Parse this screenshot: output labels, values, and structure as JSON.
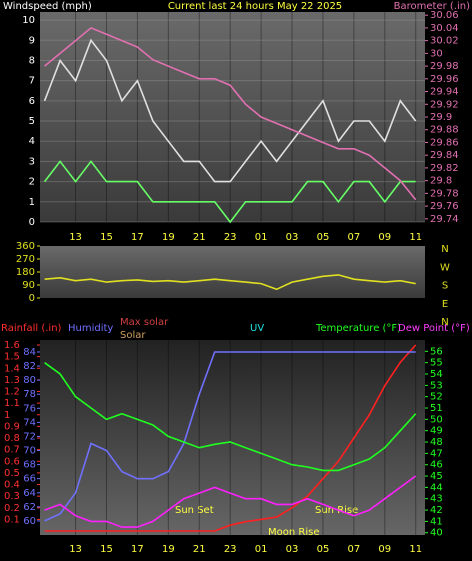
{
  "chart_data": [
    {
      "type": "line",
      "title": "Current last 24 hours May 22 2025",
      "y_label": "Windspeed (mph)",
      "y2_label": "Barometer (.in)",
      "x": [
        11,
        12,
        13,
        14,
        15,
        16,
        17,
        18,
        19,
        20,
        21,
        22,
        23,
        24,
        25,
        26,
        27,
        28,
        29,
        30,
        31,
        32,
        33,
        34,
        35
      ],
      "xlim": [
        10.7,
        35.6
      ],
      "xticks": [
        13,
        15,
        17,
        19,
        21,
        23,
        {
          "value": 25,
          "label": "01"
        },
        {
          "value": 27,
          "label": "03"
        },
        {
          "value": 29,
          "label": "05"
        },
        {
          "value": 31,
          "label": "07"
        },
        {
          "value": 33,
          "label": "09"
        },
        {
          "value": 35,
          "label": "11"
        }
      ],
      "ylim": [
        0,
        10.4
      ],
      "yticks": [
        0,
        1,
        2,
        3,
        4,
        5,
        6,
        7,
        8,
        9,
        10
      ],
      "y2lim": [
        29.735,
        30.065
      ],
      "y2ticks": [
        29.74,
        29.76,
        29.78,
        29.8,
        29.82,
        29.84,
        29.86,
        29.88,
        29.9,
        29.92,
        29.94,
        29.96,
        29.98,
        30,
        30.02,
        30.04,
        30.06
      ],
      "grid": true,
      "series": [
        {
          "color": "#e0e0e0",
          "values": [
            6,
            8,
            7,
            9,
            8,
            6,
            7,
            5,
            4,
            3,
            3,
            2,
            2,
            3,
            4,
            3,
            4,
            5,
            6,
            4,
            5,
            5,
            4,
            6,
            5
          ]
        },
        {
          "color": "#66ff66",
          "values": [
            2,
            3,
            2,
            3,
            2,
            2,
            2,
            1,
            1,
            1,
            1,
            1,
            0,
            1,
            1,
            1,
            1,
            2,
            2,
            1,
            2,
            2,
            1,
            2,
            2
          ]
        },
        {
          "color": "#e070b0",
          "axis": "y2",
          "values": [
            29.98,
            30,
            30.02,
            30.04,
            30.03,
            30.02,
            30.01,
            29.99,
            29.98,
            29.97,
            29.96,
            29.96,
            29.95,
            29.92,
            29.9,
            29.89,
            29.88,
            29.87,
            29.86,
            29.85,
            29.85,
            29.84,
            29.82,
            29.8,
            29.77
          ]
        }
      ]
    },
    {
      "type": "line",
      "x": [
        11,
        12,
        13,
        14,
        15,
        16,
        17,
        18,
        19,
        20,
        21,
        22,
        23,
        24,
        25,
        26,
        27,
        28,
        29,
        30,
        31,
        32,
        33,
        34,
        35
      ],
      "xlim": [
        10.7,
        35.6
      ],
      "ylim": [
        0,
        360
      ],
      "yticks": [
        0,
        90,
        180,
        270,
        360
      ],
      "direction_labels": [
        "N",
        "W",
        "S",
        "E",
        "N"
      ],
      "series": [
        {
          "color": "#e0e020",
          "values": [
            130,
            140,
            120,
            130,
            110,
            120,
            125,
            115,
            120,
            110,
            120,
            130,
            120,
            110,
            100,
            60,
            110,
            130,
            150,
            160,
            130,
            120,
            110,
            120,
            100
          ]
        }
      ]
    },
    {
      "type": "line",
      "y_label": "Rainfall (.in)",
      "y3_label": "Humidity",
      "max_solar_label": "Max solar",
      "solar_label": "Solar",
      "uv_label": "UV",
      "y2_label": "Temperature (°F)",
      "dew_label": "Dew Point (°F)",
      "annotations": [
        "Sun Set",
        "Sun Rise",
        "Moon Rise"
      ],
      "x": [
        11,
        12,
        13,
        14,
        15,
        16,
        17,
        18,
        19,
        20,
        21,
        22,
        23,
        24,
        25,
        26,
        27,
        28,
        29,
        30,
        31,
        32,
        33,
        34,
        35
      ],
      "xlim": [
        10.7,
        35.6
      ],
      "xticks": [
        13,
        15,
        17,
        19,
        21,
        23,
        {
          "value": 25,
          "label": "01"
        },
        {
          "value": 27,
          "label": "03"
        },
        {
          "value": 29,
          "label": "05"
        },
        {
          "value": 31,
          "label": "07"
        },
        {
          "value": 33,
          "label": "09"
        },
        {
          "value": 35,
          "label": "11"
        }
      ],
      "ylim": [
        -0.034,
        1.643
      ],
      "yticks": [
        0.1,
        0.2,
        0.3,
        0.4,
        0.5,
        0.6,
        0.7,
        0.8,
        0.9,
        1,
        1.1,
        1.2,
        1.3,
        1.4,
        1.5,
        1.6
      ],
      "y3lim": [
        58,
        85.7
      ],
      "y3ticks": [
        60,
        62,
        64,
        66,
        68,
        70,
        72,
        74,
        76,
        78,
        80,
        82,
        84
      ],
      "y2lim": [
        39.8,
        57
      ],
      "y2ticks": [
        40,
        41,
        42,
        43,
        44,
        45,
        46,
        47,
        48,
        49,
        50,
        51,
        52,
        53,
        54,
        55,
        56
      ],
      "series": [
        {
          "color": "#ff2020",
          "values": [
            0,
            0,
            0,
            0,
            0,
            0,
            0,
            0,
            0,
            0,
            0,
            0,
            0.05,
            0.08,
            0.1,
            0.12,
            0.2,
            0.3,
            0.45,
            0.6,
            0.8,
            1,
            1.25,
            1.45,
            1.6
          ]
        },
        {
          "color": "#7070ff",
          "axis": "y3",
          "values": [
            60,
            61,
            64,
            71,
            70,
            67,
            66,
            66,
            67,
            71,
            78,
            84,
            84,
            84,
            84,
            84,
            84,
            84,
            84,
            84,
            84,
            84,
            84,
            84,
            84
          ]
        },
        {
          "color": "#20ff20",
          "axis": "y2",
          "values": [
            55,
            54,
            52,
            51,
            50,
            50.5,
            50,
            49.5,
            48.5,
            48,
            47.5,
            47.8,
            48,
            47.5,
            47,
            46.5,
            46,
            45.8,
            45.5,
            45.5,
            46,
            46.5,
            47.5,
            49,
            50.5
          ]
        },
        {
          "color": "#ff20ff",
          "axis": "y2",
          "values": [
            42,
            42.5,
            41.5,
            41,
            41,
            40.5,
            40.5,
            41,
            42,
            43,
            43.5,
            44,
            43.5,
            43,
            43,
            42.5,
            42.5,
            43,
            42.5,
            42,
            41.5,
            42,
            43,
            44,
            45
          ]
        }
      ]
    }
  ]
}
